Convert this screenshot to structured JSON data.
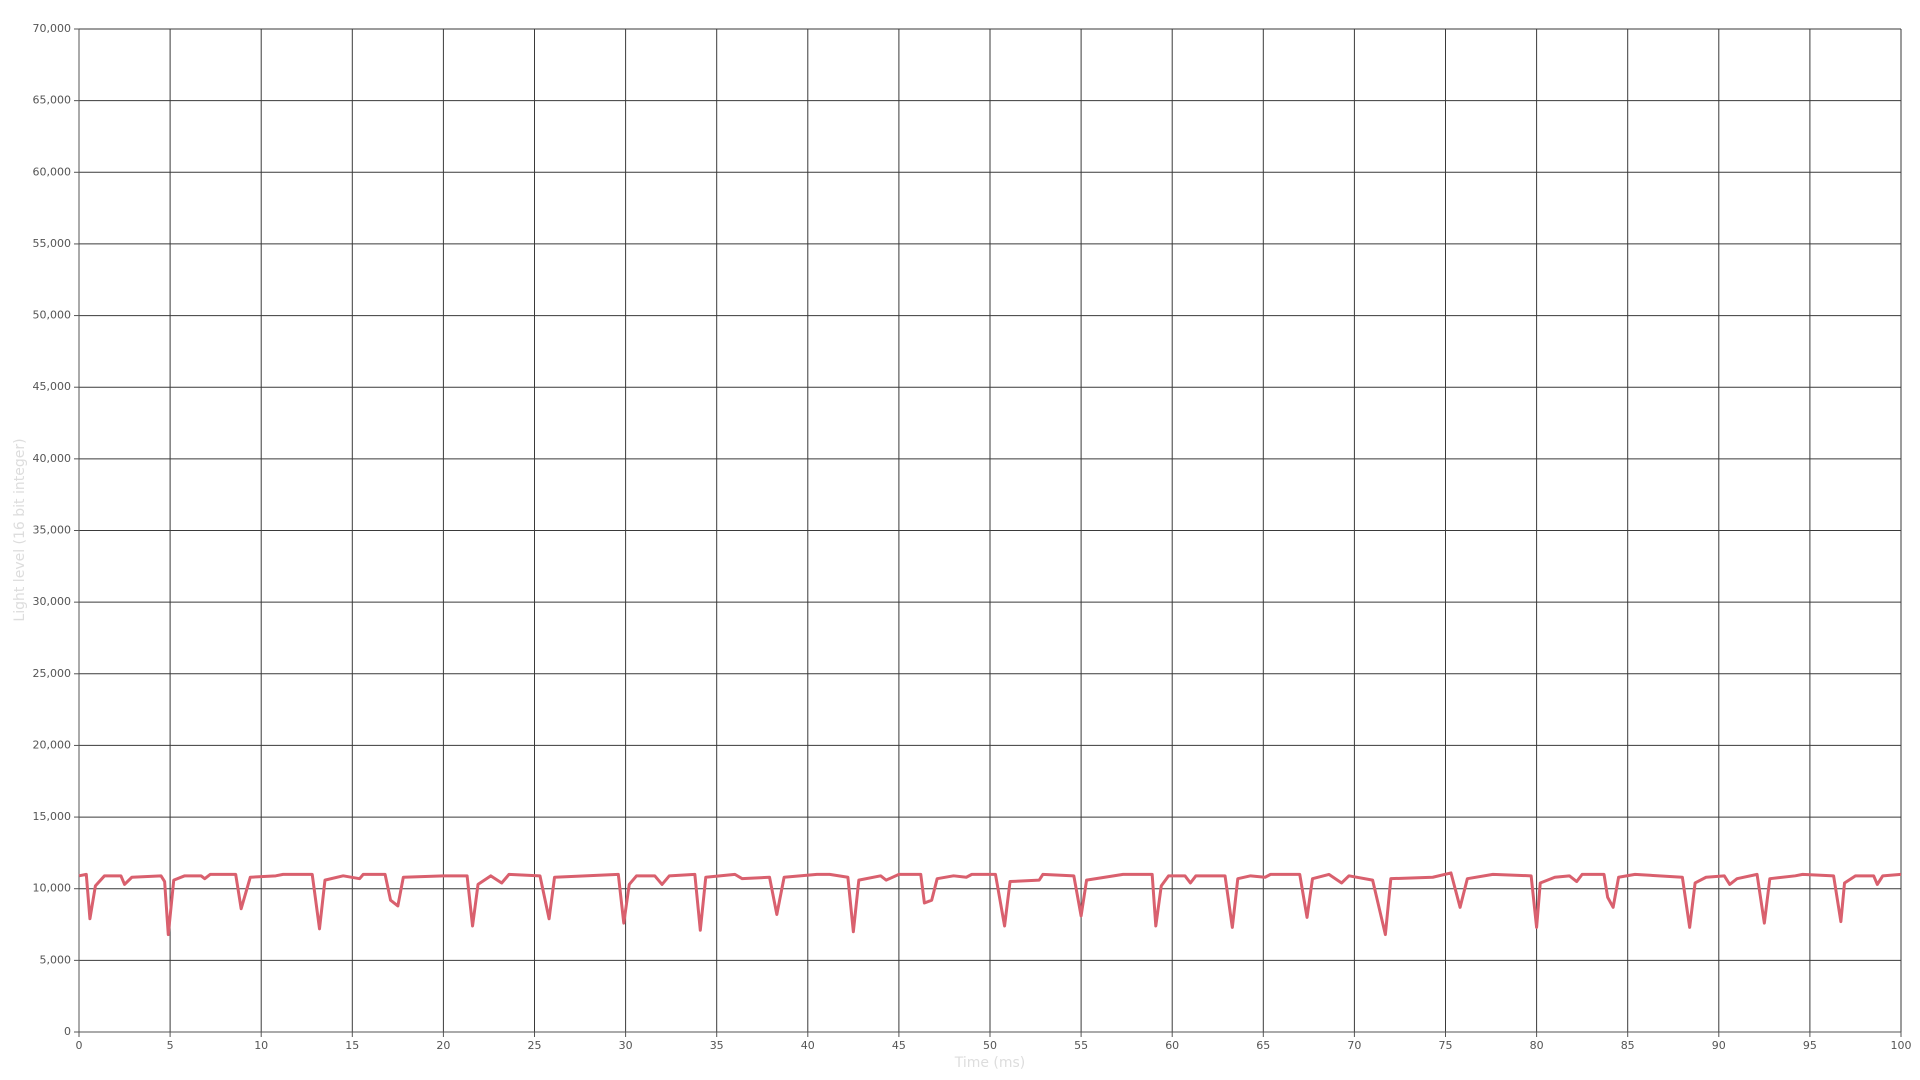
{
  "chart_data": {
    "type": "line",
    "x_label": "Time (ms)",
    "y_label": "Light level (16 bit integer)",
    "xlim": [
      0,
      100
    ],
    "ylim": [
      0,
      70000
    ],
    "grid": true,
    "xticks": [
      0,
      5,
      10,
      15,
      20,
      25,
      30,
      35,
      40,
      45,
      50,
      55,
      60,
      65,
      70,
      75,
      80,
      85,
      90,
      95,
      100
    ],
    "yticks": [
      0,
      {
        "value": 5000,
        "label": "5,000"
      },
      {
        "value": 10000,
        "label": "10,000"
      },
      {
        "value": 15000,
        "label": "15,000"
      },
      {
        "value": 20000,
        "label": "20,000"
      },
      {
        "value": 25000,
        "label": "25,000"
      },
      {
        "value": 30000,
        "label": "30,000"
      },
      {
        "value": 35000,
        "label": "35,000"
      },
      {
        "value": 40000,
        "label": "40,000"
      },
      {
        "value": 45000,
        "label": "45,000"
      },
      {
        "value": 50000,
        "label": "50,000"
      },
      {
        "value": 55000,
        "label": "55,000"
      },
      {
        "value": 60000,
        "label": "60,000"
      },
      {
        "value": 65000,
        "label": "65,000"
      },
      {
        "value": 70000,
        "label": "70,000"
      }
    ],
    "x": [
      0,
      0.4,
      0.6,
      0.9,
      1.4,
      2.3,
      2.5,
      2.9,
      4.5,
      4.7,
      4.9,
      5.2,
      5.8,
      6.7,
      6.9,
      7.2,
      8.6,
      8.9,
      9.4,
      10.8,
      11.2,
      12.8,
      13.2,
      13.5,
      14.5,
      15.4,
      15.6,
      16.8,
      17.1,
      17.5,
      17.8,
      20.0,
      21.3,
      21.6,
      21.9,
      22.6,
      23.2,
      23.6,
      25.3,
      25.8,
      26.1,
      29.6,
      29.9,
      30.2,
      30.6,
      31.6,
      32.0,
      32.4,
      33.8,
      34.1,
      34.4,
      36.0,
      36.4,
      37.9,
      38.3,
      38.7,
      40.5,
      41.2,
      42.2,
      42.5,
      42.8,
      44.0,
      44.3,
      45.0,
      46.2,
      46.4,
      46.8,
      47.1,
      48.0,
      48.7,
      49.0,
      50.3,
      50.8,
      51.1,
      52.7,
      52.9,
      54.6,
      55.0,
      55.3,
      57.3,
      58.9,
      59.1,
      59.4,
      59.8,
      60.7,
      61.0,
      61.3,
      62.9,
      63.3,
      63.6,
      64.3,
      65.1,
      65.4,
      67.0,
      67.4,
      67.7,
      68.6,
      69.3,
      69.7,
      71.0,
      71.7,
      72.0,
      74.3,
      75.3,
      75.8,
      76.2,
      77.6,
      79.7,
      80.0,
      80.2,
      81.0,
      81.8,
      82.2,
      82.5,
      83.7,
      83.9,
      84.2,
      84.5,
      85.4,
      88.0,
      88.4,
      88.7,
      89.3,
      90.3,
      90.6,
      91.0,
      92.1,
      92.5,
      92.8,
      94.2,
      94.6,
      96.3,
      96.7,
      96.9,
      97.5,
      98.5,
      98.7,
      99.0,
      100
    ],
    "series": [
      {
        "color": "#d9606e",
        "values": [
          10900,
          11000,
          7900,
          10200,
          10900,
          10900,
          10300,
          10800,
          10900,
          10500,
          6800,
          10600,
          10900,
          10900,
          10700,
          11000,
          11000,
          8600,
          10800,
          10900,
          11000,
          11000,
          7200,
          10600,
          10900,
          10700,
          11000,
          11000,
          9200,
          8800,
          10800,
          10900,
          10900,
          7400,
          10300,
          10900,
          10400,
          11000,
          10900,
          7900,
          10800,
          11000,
          7600,
          10300,
          10900,
          10900,
          10300,
          10900,
          11000,
          7100,
          10800,
          11000,
          10700,
          10800,
          8200,
          10800,
          11000,
          11000,
          10800,
          7000,
          10600,
          10900,
          10600,
          11000,
          11000,
          9000,
          9200,
          10700,
          10900,
          10800,
          11000,
          11000,
          7400,
          10500,
          10600,
          11000,
          10900,
          8100,
          10600,
          11000,
          11000,
          7400,
          10200,
          10900,
          10900,
          10400,
          10900,
          10900,
          7300,
          10700,
          10900,
          10800,
          11000,
          11000,
          8000,
          10700,
          11000,
          10400,
          10900,
          10600,
          6800,
          10700,
          10800,
          11100,
          8700,
          10700,
          11000,
          10900,
          7300,
          10400,
          10800,
          10900,
          10500,
          11000,
          11000,
          9400,
          8700,
          10800,
          11000,
          10800,
          7300,
          10400,
          10800,
          10900,
          10300,
          10700,
          11000,
          7600,
          10700,
          10900,
          11000,
          10900,
          7700,
          10400,
          10900,
          10900,
          10300,
          10900,
          11000
        ]
      }
    ]
  }
}
